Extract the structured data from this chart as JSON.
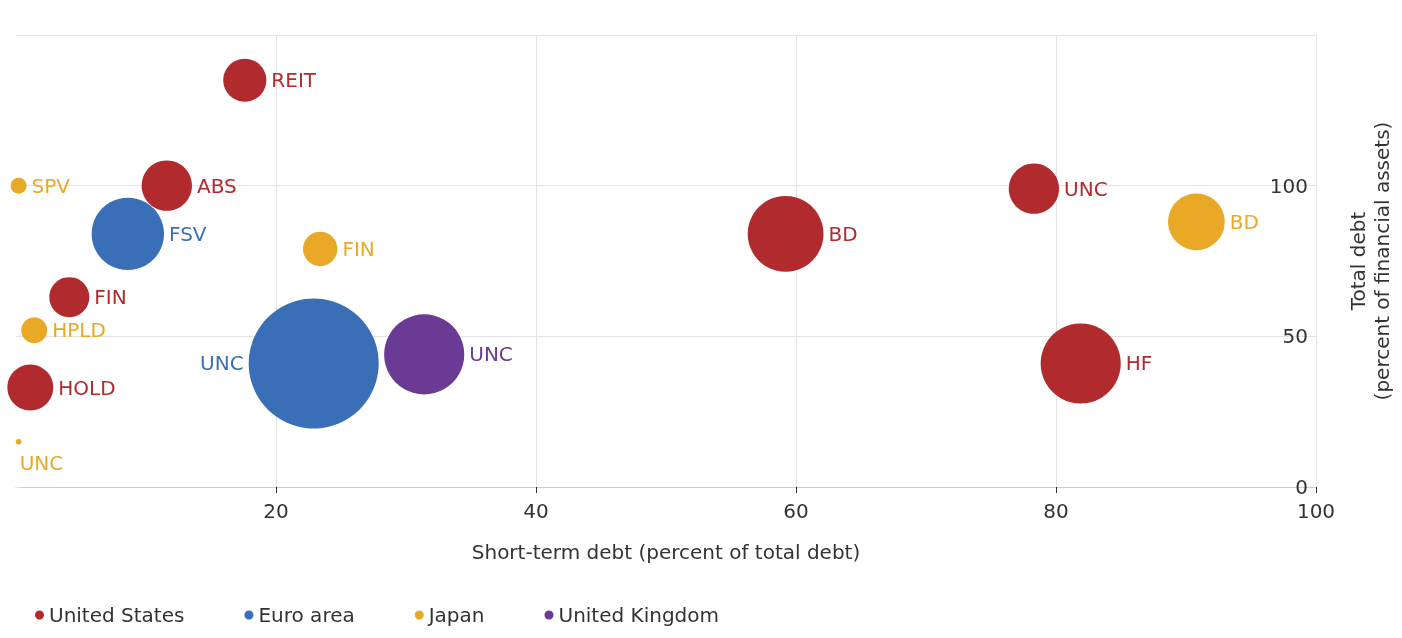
{
  "chart_data": {
    "type": "bubble",
    "xlabel": "Short-term debt (percent of total debt)",
    "ylabel": "Total debt\n(percent of financial assets)",
    "xlim": [
      0,
      100
    ],
    "xticks": [
      20,
      40,
      60,
      80,
      100
    ],
    "ylim": [
      0,
      150
    ],
    "yticks": [
      0,
      50,
      100,
      {
        "value": 150,
        "label": null
      }
    ],
    "grid": true,
    "legend": "bottom left",
    "marker": "circle",
    "series": [
      {
        "name": "United States",
        "color": "#b02a2e",
        "x": [
          17.6,
          11.6,
          78.3,
          59.2,
          4.1,
          1.1,
          81.9
        ],
        "values": [
          135,
          100,
          99,
          84,
          63,
          33,
          41
        ],
        "sizes": [
          0.11,
          0.15,
          0.15,
          0.34,
          0.095,
          0.125,
          0.38
        ],
        "value_labels": [
          "REIT",
          "ABS",
          "UNC",
          "BD",
          "FIN",
          "HOLD",
          "HF"
        ]
      },
      {
        "name": "Euro area",
        "color": "#3a6fb8",
        "x": [
          8.6,
          22.9
        ],
        "values": [
          84,
          41
        ],
        "sizes": [
          0.31,
          1
        ],
        "value_labels": [
          "FSV",
          "UNC"
        ]
      },
      {
        "name": "Japan",
        "color": "#e9a825",
        "x": [
          0.2,
          23.4,
          1.4,
          90.8,
          0.2
        ],
        "values": [
          100,
          79,
          52,
          88,
          15
        ],
        "sizes": [
          0.015,
          0.07,
          0.04,
          0.19,
          0.002
        ],
        "value_labels": [
          "SPV",
          "FIN",
          "HPLD",
          "BD",
          "UNC"
        ]
      },
      {
        "name": "United Kingdom",
        "color": "#6a3a94",
        "x": [
          31.4
        ],
        "values": [
          44
        ],
        "sizes": [
          0.38
        ],
        "value_labels": [
          "UNC"
        ]
      }
    ]
  }
}
